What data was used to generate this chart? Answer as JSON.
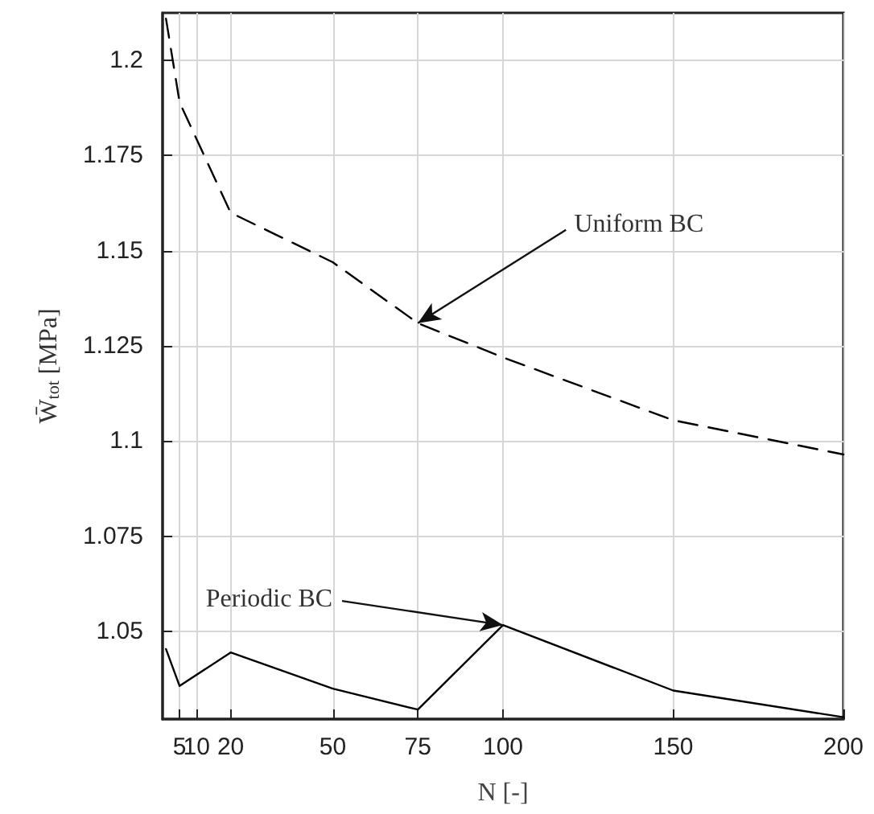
{
  "chart_data": {
    "type": "line",
    "xlabel": "N [-]",
    "ylabel": "W̄$_{tot}$ [MPa]",
    "xlim": [
      0,
      200
    ],
    "xticks": [
      5,
      10,
      20,
      50,
      75,
      100,
      150,
      200
    ],
    "ylim": [
      1.027,
      1.2125
    ],
    "yticks": [
      1.05,
      1.075,
      1.1,
      1.125,
      1.15,
      1.175,
      1.2
    ],
    "grid": true,
    "marker": "none",
    "series": [
      {
        "color": "#000000",
        "line_style": "dashed",
        "x": [
          1,
          5,
          20,
          50,
          75,
          100,
          150,
          200
        ],
        "values": [
          1.211,
          1.189,
          1.16,
          1.147,
          1.131,
          1.122,
          1.1055,
          1.0965
        ]
      },
      {
        "color": "#000000",
        "line_style": "solid",
        "x": [
          1,
          5,
          20,
          50,
          75,
          100,
          150,
          200
        ],
        "values": [
          1.0454,
          1.0357,
          1.0445,
          1.035,
          1.0295,
          1.0517,
          1.0345,
          1.0275
        ]
      }
    ],
    "annotations": [
      {
        "text": "Uniform BC",
        "x": 75,
        "y": 1.131
      },
      {
        "text": "Periodic BC",
        "x": 100,
        "y": 1.0517
      }
    ]
  }
}
